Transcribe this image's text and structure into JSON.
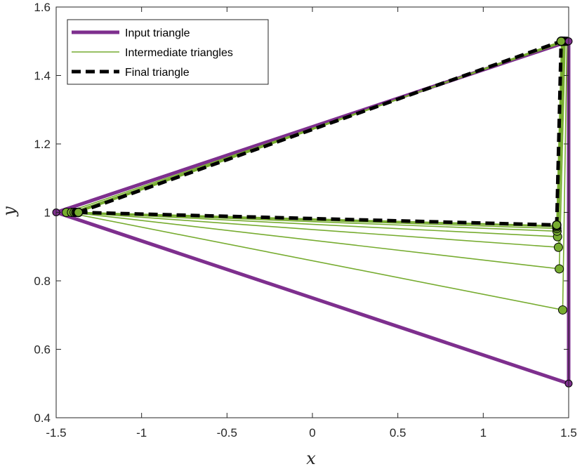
{
  "chart_data": {
    "type": "line",
    "xlabel": "x",
    "ylabel": "y",
    "xlim": [
      -1.5,
      1.5
    ],
    "ylim": [
      0.4,
      1.6
    ],
    "xticks": [
      -1.5,
      -1,
      -0.5,
      0,
      0.5,
      1,
      1.5
    ],
    "xtick_labels": [
      "-1.5",
      "-1",
      "-0.5",
      "0",
      "0.5",
      "1",
      "1.5"
    ],
    "yticks": [
      0.4,
      0.6,
      0.8,
      1.0,
      1.2,
      1.4,
      1.6
    ],
    "ytick_labels": [
      "0.4",
      "0.6",
      "0.8",
      "1",
      "1.2",
      "1.4",
      "1.6"
    ],
    "grid": false,
    "legend_position": "top-left",
    "colors": {
      "input": "#7e2f8e",
      "intermediate": "#77ac30",
      "final": "#000000",
      "axes": "#262626"
    },
    "legend": [
      {
        "key": "input",
        "label": "Input triangle"
      },
      {
        "key": "intermediate",
        "label": "Intermediate triangles"
      },
      {
        "key": "final",
        "label": "Final triangle"
      }
    ],
    "input_triangle": [
      [
        -1.5,
        1.0
      ],
      [
        1.5,
        1.5
      ],
      [
        1.5,
        0.5
      ]
    ],
    "intermediate_triangles": [
      [
        [
          -1.44,
          1.0
        ],
        [
          1.49,
          1.5
        ],
        [
          1.465,
          0.715
        ]
      ],
      [
        [
          -1.41,
          1.0
        ],
        [
          1.48,
          1.5
        ],
        [
          1.445,
          0.835
        ]
      ],
      [
        [
          -1.395,
          1.0
        ],
        [
          1.475,
          1.5
        ],
        [
          1.44,
          0.898
        ]
      ],
      [
        [
          -1.385,
          1.0
        ],
        [
          1.47,
          1.5
        ],
        [
          1.435,
          0.929
        ]
      ],
      [
        [
          -1.38,
          1.0
        ],
        [
          1.465,
          1.5
        ],
        [
          1.432,
          0.945
        ]
      ],
      [
        [
          -1.376,
          1.0
        ],
        [
          1.462,
          1.5
        ],
        [
          1.431,
          0.953
        ]
      ],
      [
        [
          -1.374,
          1.0
        ],
        [
          1.46,
          1.5
        ],
        [
          1.43,
          0.958
        ]
      ],
      [
        [
          -1.372,
          1.0
        ],
        [
          1.458,
          1.5
        ],
        [
          1.43,
          0.961
        ]
      ]
    ],
    "final_triangle": [
      [
        -1.37,
        1.0
      ],
      [
        1.456,
        1.5
      ],
      [
        1.43,
        0.963
      ]
    ]
  }
}
